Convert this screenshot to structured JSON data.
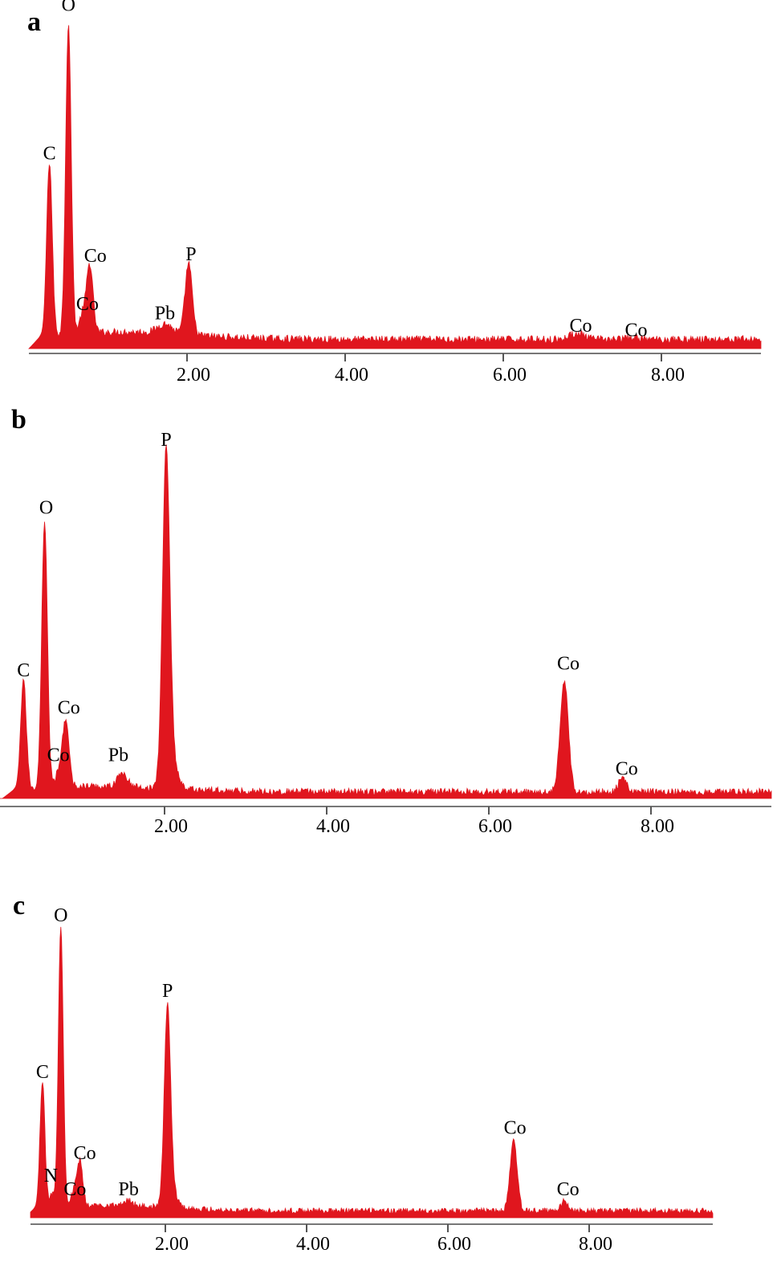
{
  "chart_data": [
    {
      "type": "area",
      "panel_label": "a",
      "xlim": [
        0,
        9.3
      ],
      "ylim": [
        0,
        1
      ],
      "ticks": [
        "2.00",
        "4.00",
        "6.00",
        "8.00"
      ],
      "tick_values": [
        2,
        4,
        6,
        8
      ],
      "color": "#e0161e",
      "baseline": 0.03,
      "noise": 0.012,
      "peaks": [
        {
          "x": 0.26,
          "h": 0.56,
          "w": 0.035
        },
        {
          "x": 0.5,
          "h": 1.0,
          "w": 0.035
        },
        {
          "x": 0.68,
          "h": 0.06,
          "w": 0.04
        },
        {
          "x": 0.77,
          "h": 0.22,
          "w": 0.04
        },
        {
          "x": 1.72,
          "h": 0.03,
          "w": 0.09
        },
        {
          "x": 2.02,
          "h": 0.23,
          "w": 0.045
        },
        {
          "x": 6.93,
          "h": 0.02,
          "w": 0.09
        },
        {
          "x": 7.65,
          "h": 0.005,
          "w": 0.09
        }
      ],
      "labels": [
        {
          "text": "O",
          "x": 0.5,
          "y": 1.09
        },
        {
          "text": "C",
          "x": 0.26,
          "y": 0.61
        },
        {
          "text": "Co",
          "x": 0.84,
          "y": 0.28
        },
        {
          "text": "Co",
          "x": 0.74,
          "y": 0.125
        },
        {
          "text": "Pb",
          "x": 1.72,
          "y": 0.095
        },
        {
          "text": "P",
          "x": 2.05,
          "y": 0.285
        },
        {
          "text": "Co",
          "x": 6.98,
          "y": 0.055
        },
        {
          "text": "Co",
          "x": 7.68,
          "y": 0.04
        }
      ]
    },
    {
      "type": "area",
      "panel_label": "b",
      "xlim": [
        0,
        9.3
      ],
      "ylim": [
        0,
        1
      ],
      "ticks": [
        "2.00",
        "4.00",
        "6.00",
        "8.00"
      ],
      "tick_values": [
        2,
        4,
        6,
        8
      ],
      "color": "#e0161e",
      "baseline": 0.02,
      "noise": 0.01,
      "peaks": [
        {
          "x": 0.26,
          "h": 0.32,
          "w": 0.035
        },
        {
          "x": 0.52,
          "h": 0.79,
          "w": 0.035
        },
        {
          "x": 0.69,
          "h": 0.04,
          "w": 0.04
        },
        {
          "x": 0.78,
          "h": 0.2,
          "w": 0.04
        },
        {
          "x": 1.48,
          "h": 0.04,
          "w": 0.06
        },
        {
          "x": 2.02,
          "h": 1.0,
          "w": 0.045
        },
        {
          "x": 2.12,
          "h": 0.06,
          "w": 0.06
        },
        {
          "x": 6.93,
          "h": 0.33,
          "w": 0.05
        },
        {
          "x": 7.65,
          "h": 0.04,
          "w": 0.05
        }
      ],
      "labels": [
        {
          "text": "P",
          "x": 2.02,
          "y": 1.04
        },
        {
          "text": "O",
          "x": 0.54,
          "y": 0.84
        },
        {
          "text": "C",
          "x": 0.26,
          "y": 0.36
        },
        {
          "text": "Co",
          "x": 0.82,
          "y": 0.25
        },
        {
          "text": "Co",
          "x": 0.69,
          "y": 0.11
        },
        {
          "text": "Pb",
          "x": 1.43,
          "y": 0.11
        },
        {
          "text": "Co",
          "x": 6.98,
          "y": 0.38
        },
        {
          "text": "Co",
          "x": 7.7,
          "y": 0.07
        }
      ]
    },
    {
      "type": "area",
      "panel_label": "c",
      "xlim": [
        0,
        9.3
      ],
      "ylim": [
        0,
        1
      ],
      "ticks": [
        "2.00",
        "4.00",
        "6.00",
        "8.00"
      ],
      "tick_values": [
        2,
        4,
        6,
        8
      ],
      "color": "#e0161e",
      "baseline": 0.025,
      "noise": 0.01,
      "peaks": [
        {
          "x": 0.26,
          "h": 0.45,
          "w": 0.035
        },
        {
          "x": 0.4,
          "h": 0.05,
          "w": 0.035
        },
        {
          "x": 0.52,
          "h": 1.0,
          "w": 0.035
        },
        {
          "x": 0.7,
          "h": 0.05,
          "w": 0.04
        },
        {
          "x": 0.79,
          "h": 0.16,
          "w": 0.04
        },
        {
          "x": 1.48,
          "h": 0.02,
          "w": 0.06
        },
        {
          "x": 2.03,
          "h": 0.72,
          "w": 0.045
        },
        {
          "x": 2.13,
          "h": 0.04,
          "w": 0.06
        },
        {
          "x": 6.93,
          "h": 0.25,
          "w": 0.05
        },
        {
          "x": 7.65,
          "h": 0.035,
          "w": 0.05
        }
      ],
      "labels": [
        {
          "text": "O",
          "x": 0.52,
          "y": 1.06
        },
        {
          "text": "P",
          "x": 2.03,
          "y": 0.79
        },
        {
          "text": "C",
          "x": 0.26,
          "y": 0.5
        },
        {
          "text": "Co",
          "x": 0.86,
          "y": 0.21
        },
        {
          "text": "N",
          "x": 0.38,
          "y": 0.13
        },
        {
          "text": "Co",
          "x": 0.72,
          "y": 0.08
        },
        {
          "text": "Pb",
          "x": 1.48,
          "y": 0.08
        },
        {
          "text": "Co",
          "x": 6.95,
          "y": 0.3
        },
        {
          "text": "Co",
          "x": 7.7,
          "y": 0.08
        }
      ]
    }
  ]
}
